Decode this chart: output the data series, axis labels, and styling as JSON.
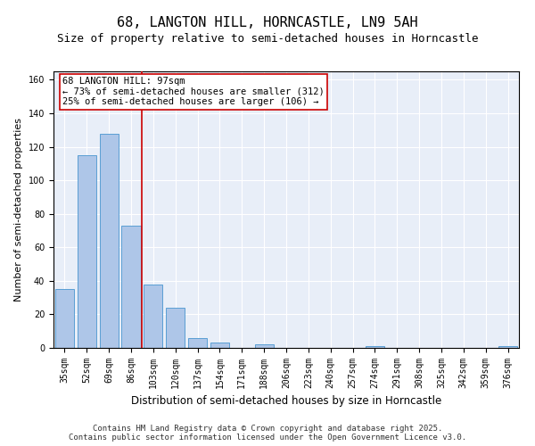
{
  "title1": "68, LANGTON HILL, HORNCASTLE, LN9 5AH",
  "title2": "Size of property relative to semi-detached houses in Horncastle",
  "xlabel": "Distribution of semi-detached houses by size in Horncastle",
  "ylabel": "Number of semi-detached properties",
  "bar_color": "#aec6e8",
  "bar_edge_color": "#5a9fd4",
  "categories": [
    "35sqm",
    "52sqm",
    "69sqm",
    "86sqm",
    "103sqm",
    "120sqm",
    "137sqm",
    "154sqm",
    "171sqm",
    "188sqm",
    "206sqm",
    "223sqm",
    "240sqm",
    "257sqm",
    "274sqm",
    "291sqm",
    "308sqm",
    "325sqm",
    "342sqm",
    "359sqm",
    "376sqm"
  ],
  "values": [
    35,
    115,
    128,
    73,
    38,
    24,
    6,
    3,
    0,
    2,
    0,
    0,
    0,
    0,
    1,
    0,
    0,
    0,
    0,
    0,
    1
  ],
  "ylim": [
    0,
    165
  ],
  "yticks": [
    0,
    20,
    40,
    60,
    80,
    100,
    120,
    140,
    160
  ],
  "vline_color": "#cc0000",
  "annotation_box_text": "68 LANGTON HILL: 97sqm\n← 73% of semi-detached houses are smaller (312)\n25% of semi-detached houses are larger (106) →",
  "bg_color": "#e8eef8",
  "footer1": "Contains HM Land Registry data © Crown copyright and database right 2025.",
  "footer2": "Contains public sector information licensed under the Open Government Licence v3.0.",
  "title1_fontsize": 11,
  "title2_fontsize": 9,
  "xlabel_fontsize": 8.5,
  "ylabel_fontsize": 8,
  "tick_fontsize": 7,
  "annotation_fontsize": 7.5,
  "footer_fontsize": 6.5
}
